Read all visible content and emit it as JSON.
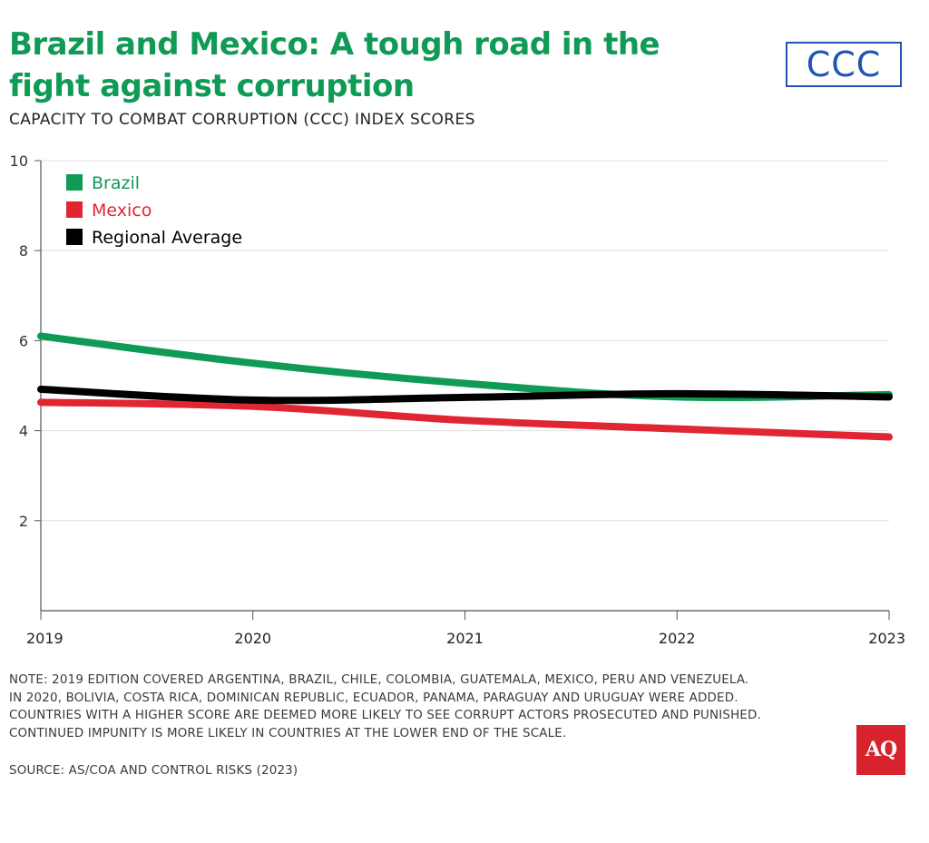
{
  "header": {
    "title_line1": "Brazil and Mexico: A tough road in the",
    "title_line2": "fight against corruption",
    "subtitle": "CAPACITY TO COMBAT CORRUPTION (CCC) INDEX SCORES",
    "logo_text": "CCC"
  },
  "colors": {
    "brazil": "#0f9a55",
    "mexico": "#e02533",
    "regional": "#000000",
    "grid": "#e0e0e0",
    "axis": "#555555"
  },
  "chart_data": {
    "type": "line",
    "title": "Brazil and Mexico: A tough road in the fight against corruption",
    "subtitle": "CAPACITY TO COMBAT CORRUPTION (CCC) INDEX SCORES",
    "xlabel": "",
    "ylabel": "",
    "x": [
      "2019",
      "2020",
      "2021",
      "2022",
      "2023"
    ],
    "ylim": [
      0,
      10
    ],
    "yticks": [
      2,
      4,
      6,
      8,
      10
    ],
    "grid": true,
    "legend_position": "top-left",
    "series": [
      {
        "name": "Brazil",
        "color": "#0f9a55",
        "values": [
          6.1,
          5.5,
          5.05,
          4.75,
          4.8
        ]
      },
      {
        "name": "Mexico",
        "color": "#e02533",
        "values": [
          4.63,
          4.54,
          4.23,
          4.04,
          3.86
        ]
      },
      {
        "name": "Regional Average",
        "color": "#000000",
        "values": [
          4.92,
          4.68,
          4.74,
          4.82,
          4.75
        ]
      }
    ]
  },
  "footer": {
    "note_lines": [
      "NOTE: 2019 EDITION COVERED ARGENTINA, BRAZIL, CHILE, COLOMBIA, GUATEMALA, MEXICO, PERU AND VENEZUELA.",
      "IN 2020, BOLIVIA, COSTA RICA, DOMINICAN REPUBLIC, ECUADOR, PANAMA, PARAGUAY AND URUGUAY WERE ADDED.",
      "COUNTRIES WITH A HIGHER SCORE ARE DEEMED MORE LIKELY TO SEE CORRUPT ACTORS PROSECUTED AND PUNISHED.",
      "CONTINUED IMPUNITY IS MORE LIKELY IN COUNTRIES AT THE LOWER END OF THE SCALE."
    ],
    "source": "SOURCE: AS/COA AND CONTROL RISKS (2023)",
    "brand_logo": "AQ"
  }
}
